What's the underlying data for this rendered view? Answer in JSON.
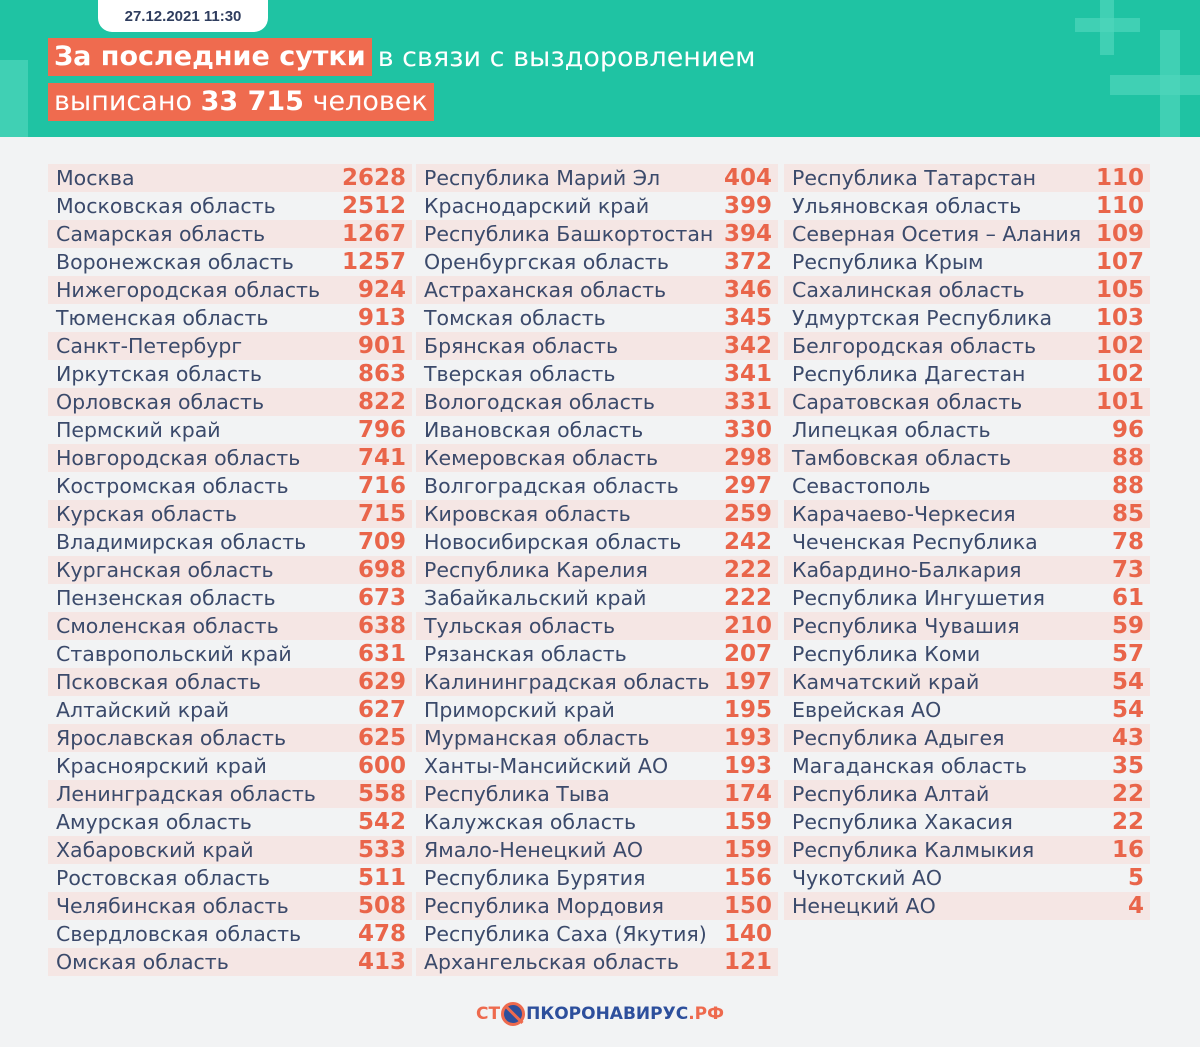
{
  "header": {
    "date": "27.12.2021 11:30",
    "line1_highlight": "За последние сутки",
    "line1_rest": "в связи с выздоровлением",
    "line2_pre": "выписано",
    "line2_number": "33 715",
    "line2_post": "человек"
  },
  "columns": [
    [
      [
        "Москва",
        "2628"
      ],
      [
        "Московская область",
        "2512"
      ],
      [
        "Самарская область",
        "1267"
      ],
      [
        "Воронежская область",
        "1257"
      ],
      [
        "Нижегородская область",
        "924"
      ],
      [
        "Тюменская область",
        "913"
      ],
      [
        "Санкт-Петербург",
        "901"
      ],
      [
        "Иркутская область",
        "863"
      ],
      [
        "Орловская область",
        "822"
      ],
      [
        "Пермский край",
        "796"
      ],
      [
        "Новгородская область",
        "741"
      ],
      [
        "Костромская область",
        "716"
      ],
      [
        "Курская область",
        "715"
      ],
      [
        "Владимирская область",
        "709"
      ],
      [
        "Курганская область",
        "698"
      ],
      [
        "Пензенская область",
        "673"
      ],
      [
        "Смоленская область",
        "638"
      ],
      [
        "Ставропольский край",
        "631"
      ],
      [
        "Псковская область",
        "629"
      ],
      [
        "Алтайский край",
        "627"
      ],
      [
        "Ярославская область",
        "625"
      ],
      [
        "Красноярский край",
        "600"
      ],
      [
        "Ленинградская область",
        "558"
      ],
      [
        "Амурская область",
        "542"
      ],
      [
        "Хабаровский край",
        "533"
      ],
      [
        "Ростовская область",
        "511"
      ],
      [
        "Челябинская область",
        "508"
      ],
      [
        "Свердловская область",
        "478"
      ],
      [
        "Омская область",
        "413"
      ]
    ],
    [
      [
        "Республика Марий Эл",
        "404"
      ],
      [
        "Краснодарский край",
        "399"
      ],
      [
        "Республика Башкортостан",
        "394"
      ],
      [
        "Оренбургская область",
        "372"
      ],
      [
        "Астраханская область",
        "346"
      ],
      [
        "Томская область",
        "345"
      ],
      [
        "Брянская область",
        "342"
      ],
      [
        "Тверская область",
        "341"
      ],
      [
        "Вологодская область",
        "331"
      ],
      [
        "Ивановская область",
        "330"
      ],
      [
        "Кемеровская область",
        "298"
      ],
      [
        "Волгоградская область",
        "297"
      ],
      [
        "Кировская область",
        "259"
      ],
      [
        "Новосибирская область",
        "242"
      ],
      [
        "Республика Карелия",
        "222"
      ],
      [
        "Забайкальский край",
        "222"
      ],
      [
        "Тульская область",
        "210"
      ],
      [
        "Рязанская область",
        "207"
      ],
      [
        "Калининградская область",
        "197"
      ],
      [
        "Приморский край",
        "195"
      ],
      [
        "Мурманская область",
        "193"
      ],
      [
        "Ханты-Мансийский АО",
        "193"
      ],
      [
        "Республика Тыва",
        "174"
      ],
      [
        "Калужская область",
        "159"
      ],
      [
        "Ямало-Ненецкий АО",
        "159"
      ],
      [
        "Республика Бурятия",
        "156"
      ],
      [
        "Республика Мордовия",
        "150"
      ],
      [
        "Республика Саха (Якутия)",
        "140"
      ],
      [
        "Архангельская область",
        "121"
      ]
    ],
    [
      [
        "Республика Татарстан",
        "110"
      ],
      [
        "Ульяновская область",
        "110"
      ],
      [
        "Северная Осетия – Алания",
        "109"
      ],
      [
        "Республика Крым",
        "107"
      ],
      [
        "Сахалинская область",
        "105"
      ],
      [
        "Удмуртская Республика",
        "103"
      ],
      [
        "Белгородская область",
        "102"
      ],
      [
        "Республика Дагестан",
        "102"
      ],
      [
        "Саратовская область",
        "101"
      ],
      [
        "Липецкая область",
        "96"
      ],
      [
        "Тамбовская область",
        "88"
      ],
      [
        "Севастополь",
        "88"
      ],
      [
        "Карачаево-Черкесия",
        "85"
      ],
      [
        "Чеченская Республика",
        "78"
      ],
      [
        "Кабардино-Балкария",
        "73"
      ],
      [
        "Республика Ингушетия",
        "61"
      ],
      [
        "Республика Чувашия",
        "59"
      ],
      [
        "Республика Коми",
        "57"
      ],
      [
        "Камчатский край",
        "54"
      ],
      [
        "Еврейская АО",
        "54"
      ],
      [
        "Республика Адыгея",
        "43"
      ],
      [
        "Магаданская область",
        "35"
      ],
      [
        "Республика Алтай",
        "22"
      ],
      [
        "Республика Хакасия",
        "22"
      ],
      [
        "Республика Калмыкия",
        "16"
      ],
      [
        "Чукотский АО",
        "5"
      ],
      [
        "Ненецкий АО",
        "4"
      ]
    ]
  ],
  "footer": {
    "logo_pre": "СТ",
    "logo_post": "ПКОРОНАВИРУС",
    "logo_domain": ".РФ"
  },
  "colors": {
    "teal": "#1fc3a3",
    "accent": "#ef6b4f",
    "text": "#3b4a6b"
  }
}
